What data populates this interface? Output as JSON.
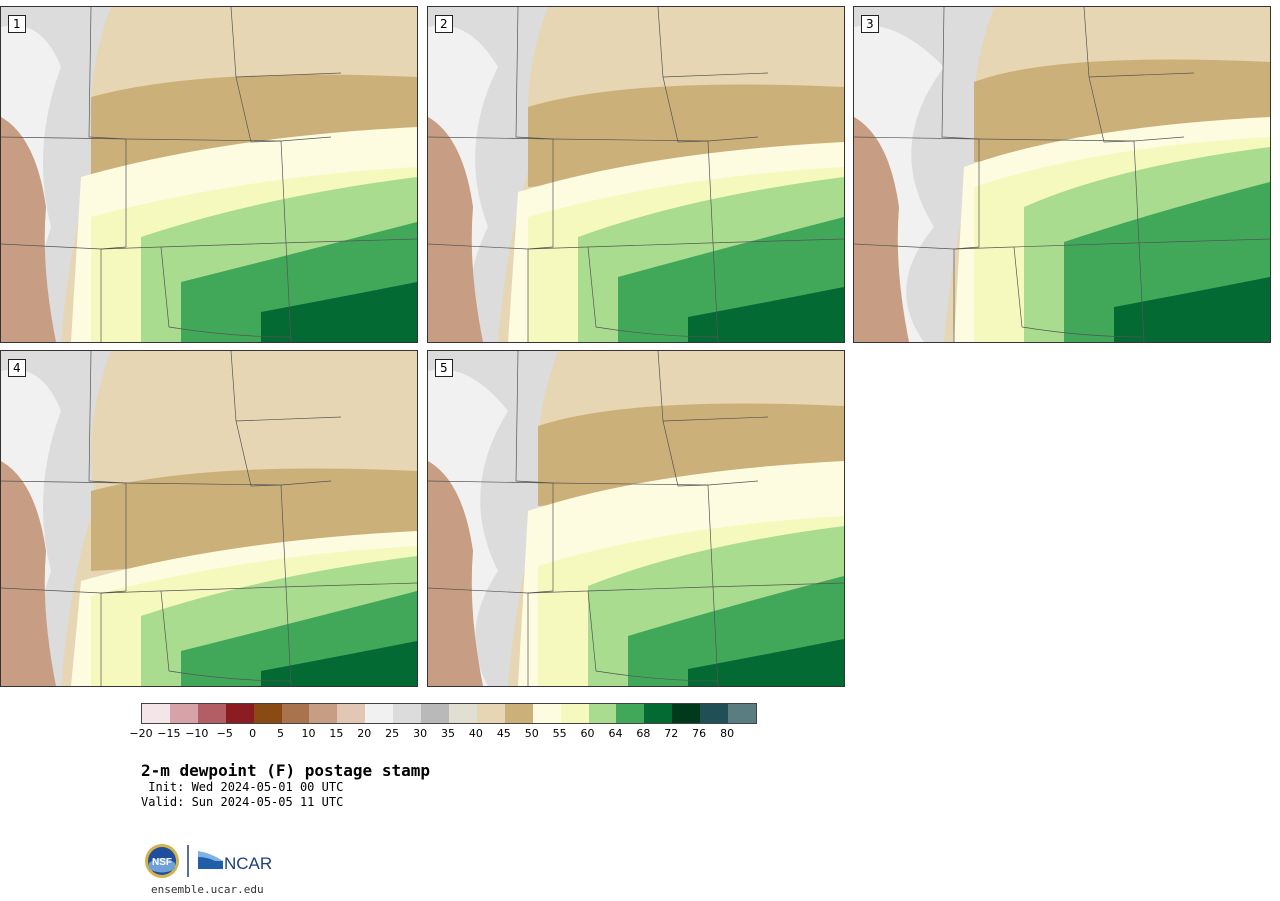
{
  "panels": [
    {
      "label": "1",
      "profile": "warm"
    },
    {
      "label": "2",
      "profile": "mid"
    },
    {
      "label": "3",
      "profile": "humid"
    },
    {
      "label": "4",
      "profile": "cool"
    },
    {
      "label": "5",
      "profile": "cooler"
    }
  ],
  "colorbar": {
    "colors": [
      "#f4e6e8",
      "#d7a3a9",
      "#b35d64",
      "#8a1c22",
      "#8a4a14",
      "#a9744d",
      "#c79d83",
      "#e3c7b5",
      "#f1f1f1",
      "#dcdcdc",
      "#b9b9b9",
      "#e0dfd2",
      "#e6d6b3",
      "#ccb079",
      "#fdfbe0",
      "#f6f9be",
      "#a9dc8e",
      "#41a85a",
      "#036a34",
      "#01391d",
      "#205055",
      "#5a7d82"
    ],
    "tick_labels": [
      "−20",
      "−15",
      "−10",
      "−5",
      "0",
      "5",
      "10",
      "15",
      "20",
      "25",
      "30",
      "35",
      "40",
      "45",
      "50",
      "55",
      "60",
      "64",
      "68",
      "72",
      "76",
      "80"
    ]
  },
  "title": "2-m dewpoint (F) postage stamp",
  "init": " Init: Wed 2024-05-01 00 UTC",
  "valid": "Valid: Sun 2024-05-05 11 UTC",
  "logo": {
    "nsf_text": "NSF",
    "ncar_text": "NCAR"
  },
  "site": "ensemble.ucar.edu"
}
